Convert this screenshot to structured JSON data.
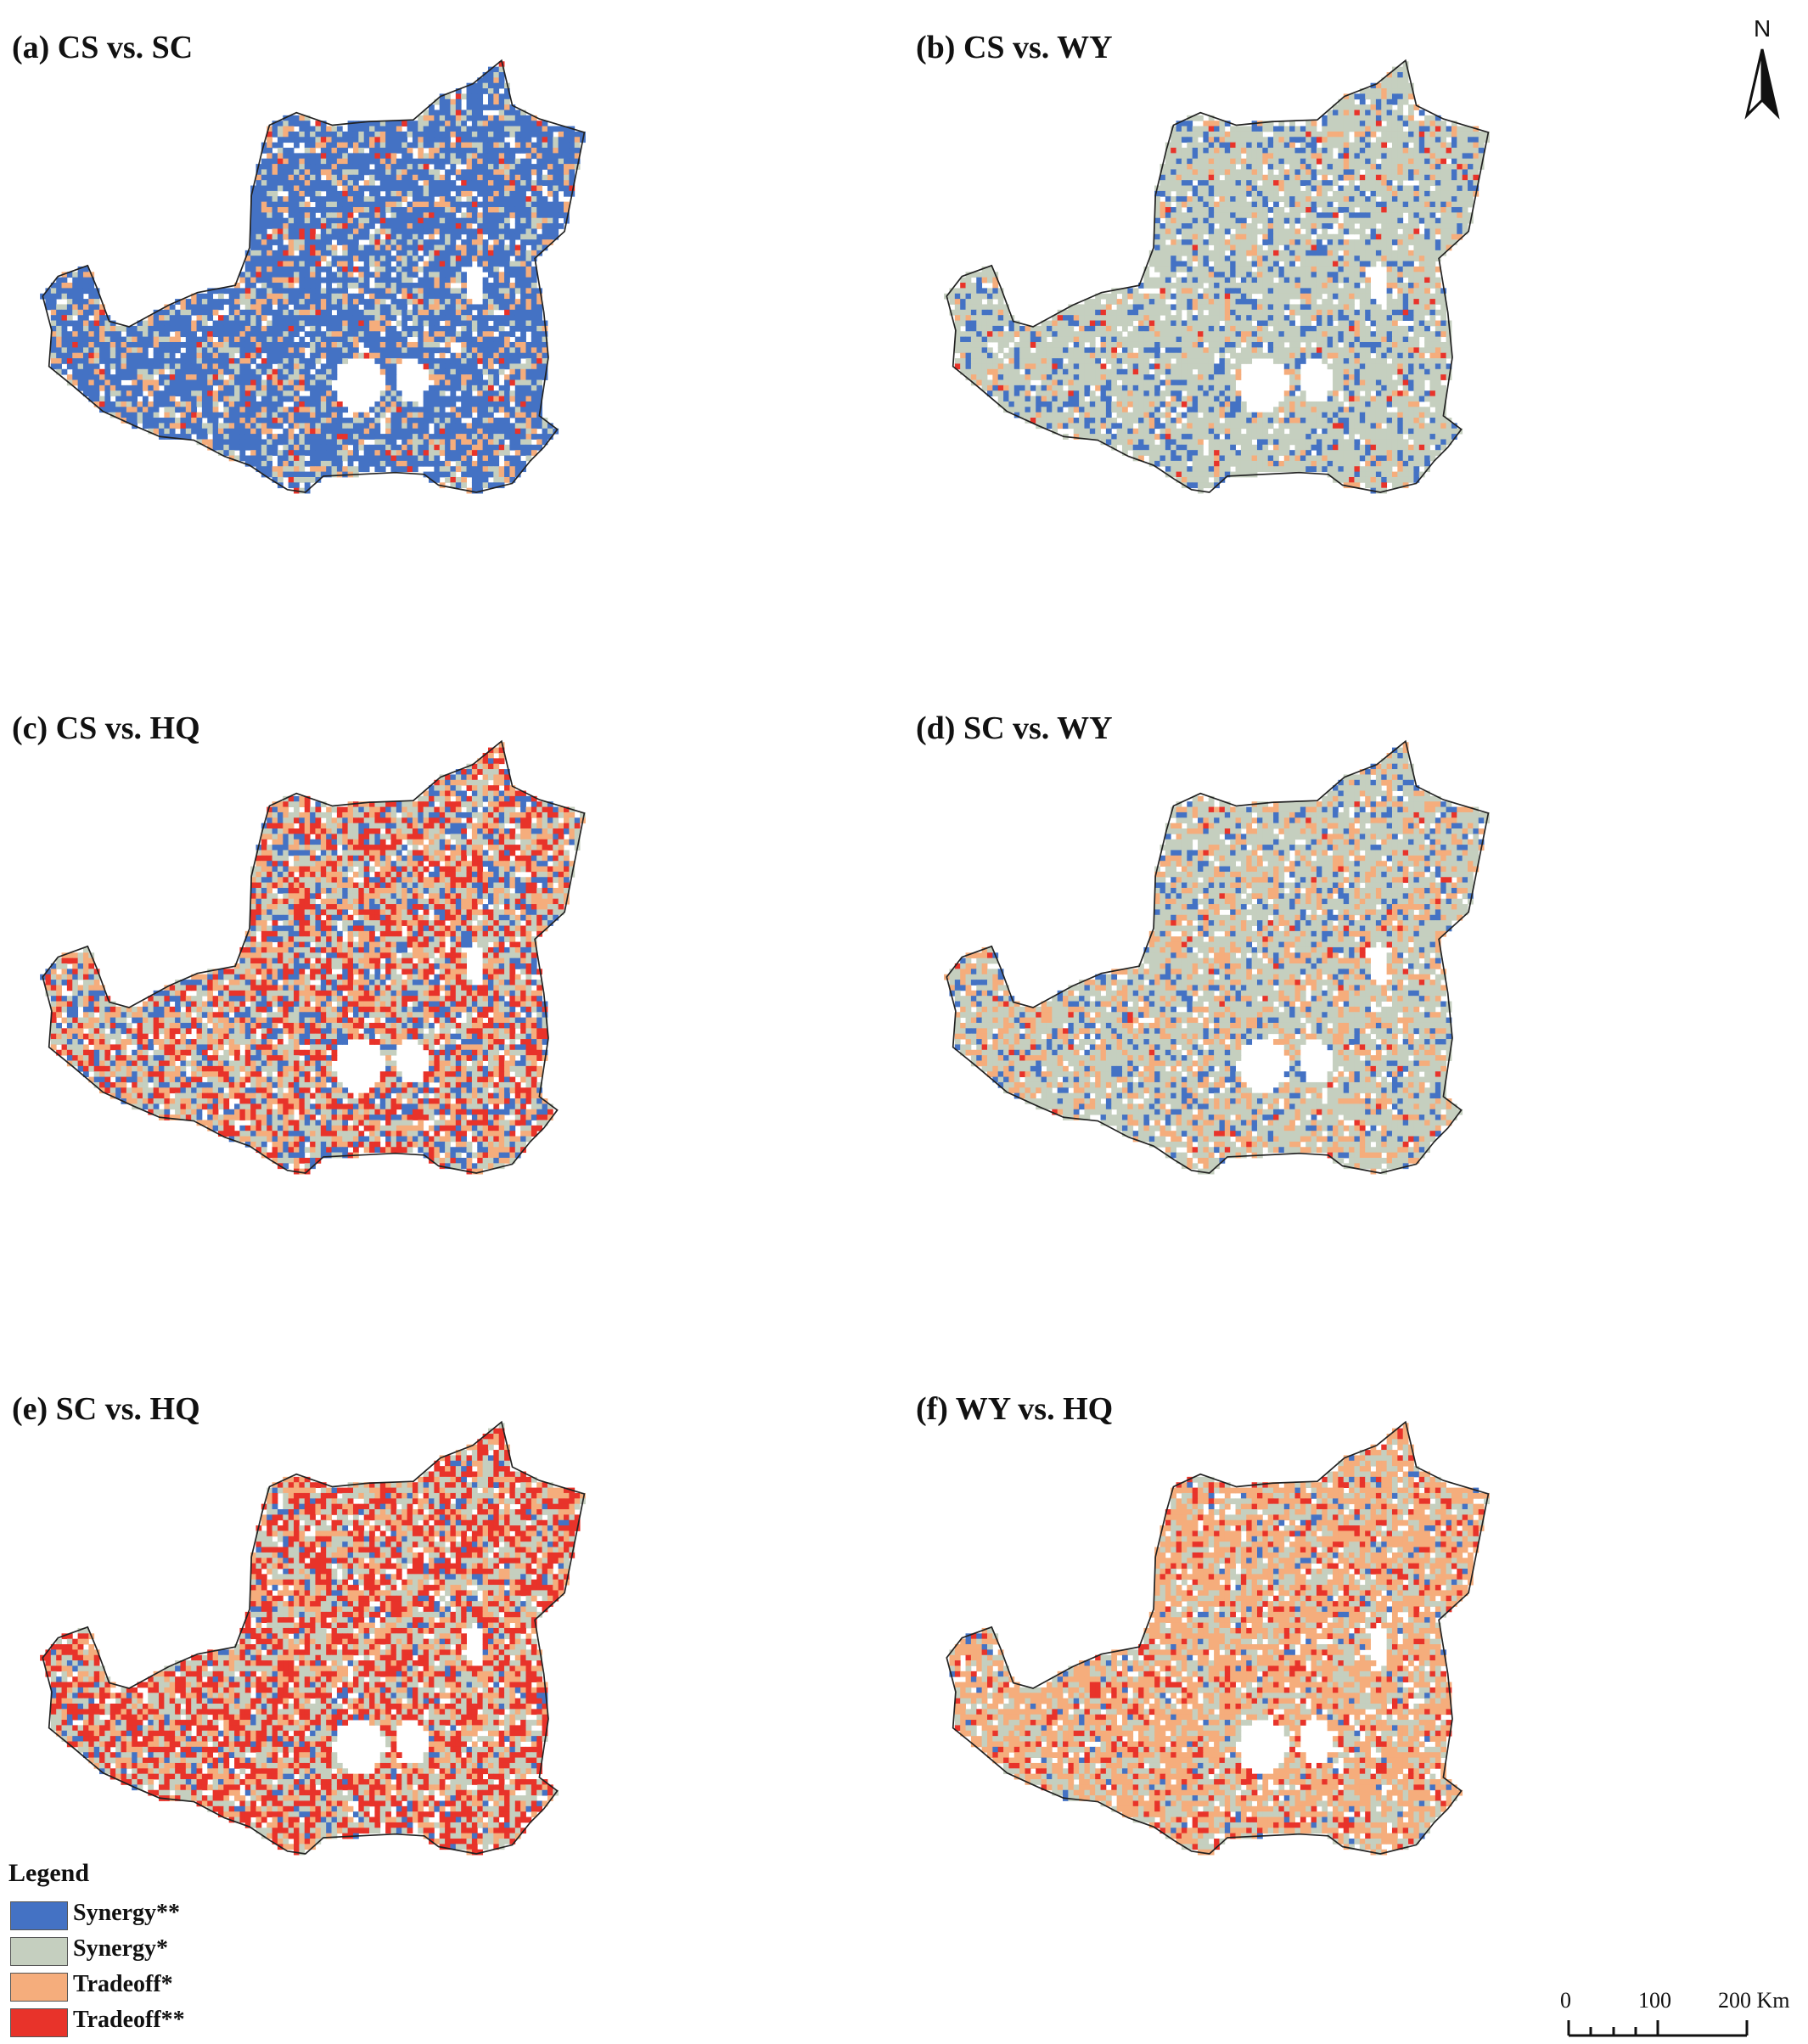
{
  "panels": [
    {
      "title": "(a) CS vs. SC",
      "mix": [
        0.7,
        0.14,
        0.13,
        0.03
      ]
    },
    {
      "title": "(b) CS vs. WY",
      "mix": [
        0.17,
        0.72,
        0.09,
        0.02
      ]
    },
    {
      "title": "(c) CS vs. HQ",
      "mix": [
        0.2,
        0.28,
        0.27,
        0.25
      ]
    },
    {
      "title": "(d) SC vs. WY",
      "mix": [
        0.14,
        0.58,
        0.26,
        0.02
      ]
    },
    {
      "title": "(e) SC vs. HQ",
      "mix": [
        0.08,
        0.3,
        0.22,
        0.4
      ]
    },
    {
      "title": "(f) WY vs. HQ",
      "mix": [
        0.04,
        0.3,
        0.54,
        0.12
      ]
    }
  ],
  "legend": {
    "title": "Legend",
    "items": [
      {
        "label": "Synergy**",
        "color": "#4472c4"
      },
      {
        "label": "Synergy*",
        "color": "#c5cfbf"
      },
      {
        "label": "Tradeoff*",
        "color": "#f5ad7c"
      },
      {
        "label": "Tradeoff**",
        "color": "#e8332a"
      }
    ]
  },
  "north_arrow": {
    "label": "N"
  },
  "scale_bar": {
    "ticks": [
      "0",
      "100",
      "200 Km"
    ]
  }
}
